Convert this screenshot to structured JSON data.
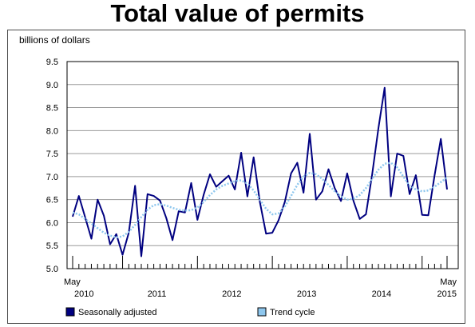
{
  "chart_data": {
    "type": "line",
    "title": "Total value of permits",
    "ylabel": "billions of dollars",
    "xlabel": "",
    "ylim": [
      5.0,
      9.5
    ],
    "y_ticks": [
      "5.0",
      "5.5",
      "6.0",
      "6.5",
      "7.0",
      "7.5",
      "8.0",
      "8.5",
      "9.0",
      "9.5"
    ],
    "x_start_label": [
      "May",
      "2010"
    ],
    "x_end_label": [
      "May",
      "2015"
    ],
    "x_year_labels": [
      "2010",
      "2011",
      "2012",
      "2013",
      "2014",
      "2015"
    ],
    "x": [
      "2010-05",
      "2010-06",
      "2010-07",
      "2010-08",
      "2010-09",
      "2010-10",
      "2010-11",
      "2010-12",
      "2011-01",
      "2011-02",
      "2011-03",
      "2011-04",
      "2011-05",
      "2011-06",
      "2011-07",
      "2011-08",
      "2011-09",
      "2011-10",
      "2011-11",
      "2011-12",
      "2012-01",
      "2012-02",
      "2012-03",
      "2012-04",
      "2012-05",
      "2012-06",
      "2012-07",
      "2012-08",
      "2012-09",
      "2012-10",
      "2012-11",
      "2012-12",
      "2013-01",
      "2013-02",
      "2013-03",
      "2013-04",
      "2013-05",
      "2013-06",
      "2013-07",
      "2013-08",
      "2013-09",
      "2013-10",
      "2013-11",
      "2013-12",
      "2014-01",
      "2014-02",
      "2014-03",
      "2014-04",
      "2014-05",
      "2014-06",
      "2014-07",
      "2014-08",
      "2014-09",
      "2014-10",
      "2014-11",
      "2014-12",
      "2015-01",
      "2015-02",
      "2015-03",
      "2015-04",
      "2015-05"
    ],
    "series": [
      {
        "name": "Seasonally adjusted",
        "color": "#000080",
        "values": [
          6.13,
          6.58,
          6.12,
          5.65,
          6.5,
          6.15,
          5.53,
          5.75,
          5.3,
          5.78,
          6.8,
          5.27,
          6.62,
          6.58,
          6.48,
          6.1,
          5.62,
          6.25,
          6.22,
          6.86,
          6.06,
          6.61,
          7.05,
          6.78,
          6.9,
          7.02,
          6.72,
          7.52,
          6.57,
          7.42,
          6.45,
          5.76,
          5.78,
          6.05,
          6.45,
          7.07,
          7.3,
          6.65,
          7.93,
          6.5,
          6.68,
          7.16,
          6.75,
          6.47,
          7.07,
          6.47,
          6.08,
          6.18,
          7.05,
          8.05,
          8.93,
          6.57,
          7.5,
          7.45,
          6.62,
          7.03,
          6.17,
          6.16,
          7.03,
          7.82,
          6.72
        ]
      },
      {
        "name": "Trend cycle",
        "color": "#8ec7ee",
        "values": [
          6.22,
          6.18,
          6.08,
          5.98,
          5.88,
          5.78,
          5.72,
          5.68,
          5.7,
          5.8,
          5.95,
          6.12,
          6.28,
          6.38,
          6.4,
          6.37,
          6.32,
          6.28,
          6.26,
          6.27,
          6.33,
          6.45,
          6.6,
          6.72,
          6.8,
          6.85,
          6.9,
          6.92,
          6.85,
          6.7,
          6.5,
          6.3,
          6.18,
          6.2,
          6.35,
          6.58,
          6.82,
          7.0,
          7.08,
          7.05,
          6.95,
          6.82,
          6.68,
          6.57,
          6.5,
          6.52,
          6.6,
          6.75,
          6.95,
          7.15,
          7.28,
          7.3,
          7.2,
          7.0,
          6.8,
          6.72,
          6.68,
          6.7,
          6.78,
          6.88,
          6.98
        ]
      }
    ],
    "grid": true,
    "legend": "bottom"
  }
}
